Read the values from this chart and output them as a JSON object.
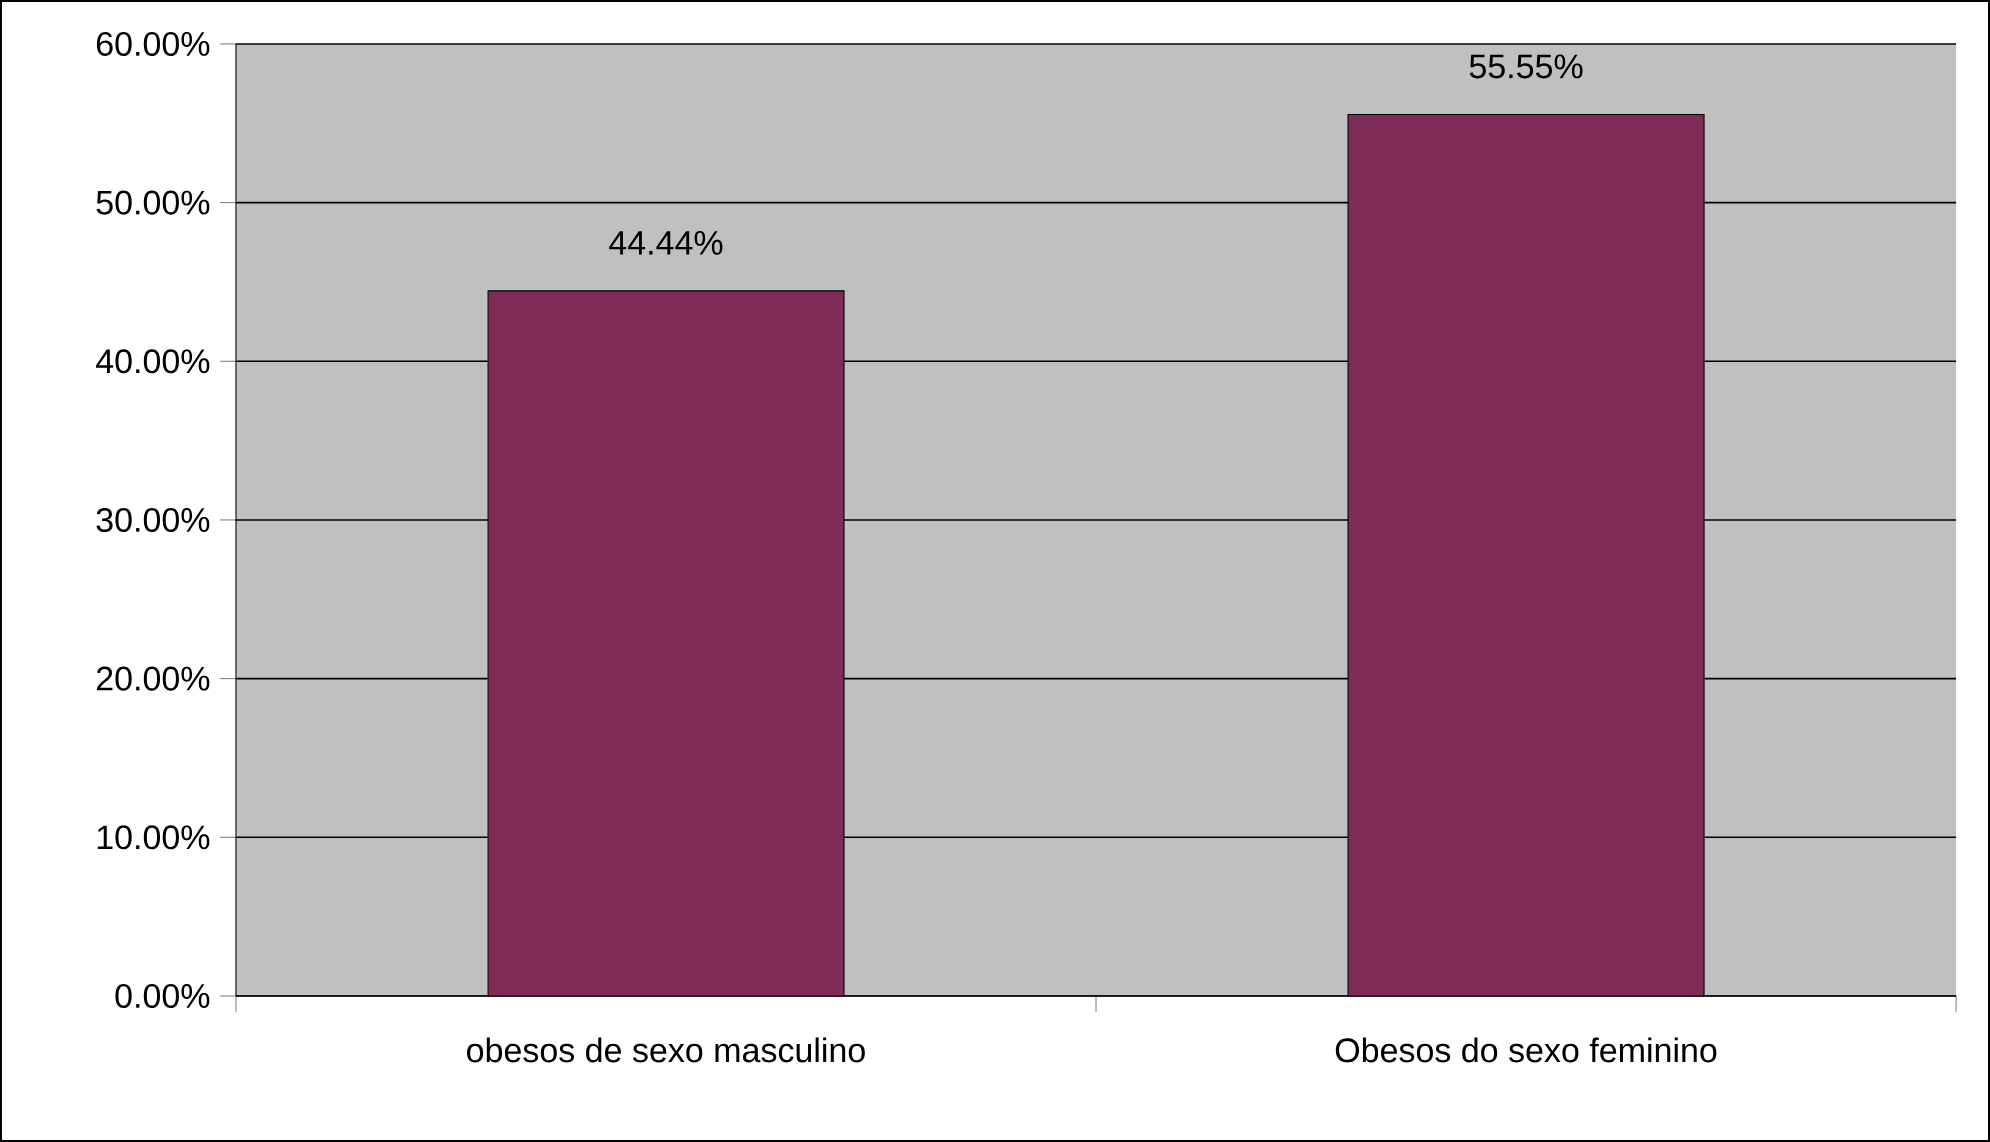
{
  "chart_data": {
    "type": "bar",
    "categories": [
      "obesos de sexo masculino",
      "Obesos do sexo feminino"
    ],
    "values": [
      44.44,
      55.55
    ],
    "value_labels": [
      "44.44%",
      "55.55%"
    ],
    "color": "#7e2b58",
    "ylim": [
      0,
      60
    ],
    "yticks": [
      {
        "value": 0,
        "label": "0.00%"
      },
      {
        "value": 10,
        "label": "10.00%"
      },
      {
        "value": 20,
        "label": "20.00%"
      },
      {
        "value": 30,
        "label": "30.00%"
      },
      {
        "value": 40,
        "label": "40.00%"
      },
      {
        "value": 50,
        "label": "50.00%"
      },
      {
        "value": 60,
        "label": "60.00%"
      }
    ],
    "grid": "y",
    "legend": false
  }
}
